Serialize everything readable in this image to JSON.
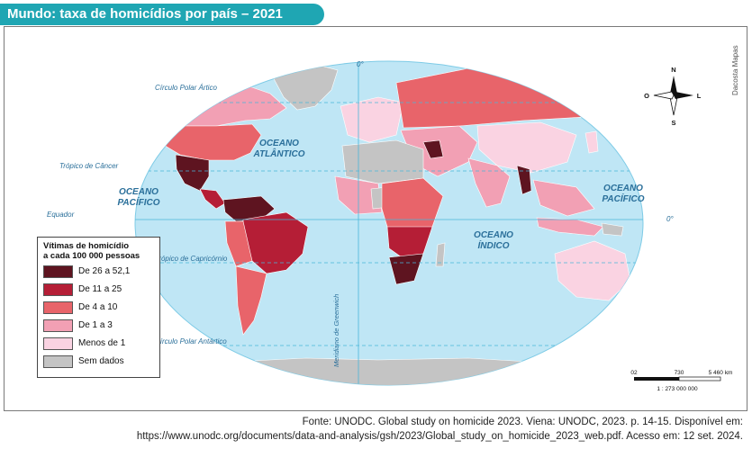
{
  "title": "Mundo: taxa de homicídios por país – 2021",
  "credit": "Dacosta Mapas",
  "map_labels": {
    "circulo_polar_artico": "Círculo Polar Ártico",
    "tropico_cancer": "Trópico de Câncer",
    "equador": "Equador",
    "tropico_capricornio": "Trópico de Capricórnio",
    "circulo_polar_antartico": "Círculo Polar Antártico",
    "meridiano_greenwich": "Meridiano de Greenwich",
    "zero_top": "0°",
    "zero_right": "0°",
    "oceano_atlantico_1": "OCEANO",
    "oceano_atlantico_2": "ATLÂNTICO",
    "oceano_pacifico_1": "OCEANO",
    "oceano_pacifico_2": "PACÍFICO",
    "oceano_pacifico_e_1": "OCEANO",
    "oceano_pacifico_e_2": "PACÍFICO",
    "oceano_indico_1": "OCEANO",
    "oceano_indico_2": "ÍNDICO"
  },
  "compass": {
    "n": "N",
    "s": "S",
    "l": "L",
    "o": "O"
  },
  "scale": {
    "t0": "02",
    "t1": "730",
    "t2": "5 460 km",
    "ratio": "1 : 273 000 000"
  },
  "legend": {
    "title_1": "Vítimas de homicídio",
    "title_2": "a cada 100 000 pessoas",
    "items": [
      {
        "label": "De 26 a 52,1",
        "color": "#5e1420"
      },
      {
        "label": "De 11 a 25",
        "color": "#b51e36"
      },
      {
        "label": "De 4 a 10",
        "color": "#e8646a"
      },
      {
        "label": "De 1 a 3",
        "color": "#f2a0b4"
      },
      {
        "label": "Menos de 1",
        "color": "#fad3e2"
      },
      {
        "label": "Sem dados",
        "color": "#c4c4c4"
      }
    ]
  },
  "source_1": "Fonte: UNODC. Global study on homicide 2023. Viena: UNODC, 2023. p. 14-15. Disponível em:",
  "source_2": "https://www.unodc.org/documents/data-and-analysis/gsh/2023/Global_study_on_homicide_2023_web.pdf. Acesso em: 12 set. 2024.",
  "colors": {
    "ocean": "#bfe6f5",
    "teal": "#1fa6b3",
    "line": "#4ab6d9"
  }
}
